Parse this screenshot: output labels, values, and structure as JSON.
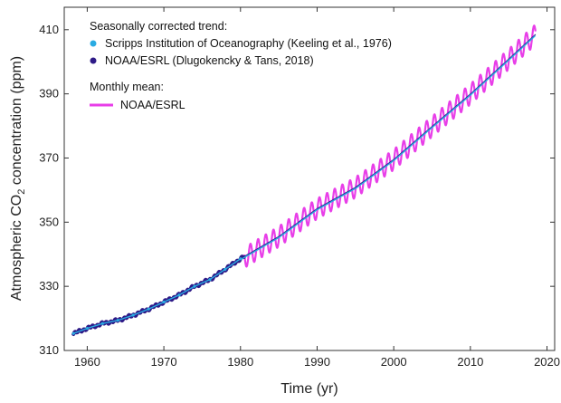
{
  "chart_data": {
    "type": "line",
    "xlabel": "Time (yr)",
    "ylabel": {
      "prefix": "Atmospheric CO",
      "subscript": "2",
      "suffix": " concentration (ppm)"
    },
    "xlim": [
      1957,
      2021
    ],
    "ylim": [
      310,
      417
    ],
    "xticks": [
      1960,
      1970,
      1980,
      1990,
      2000,
      2010,
      2020
    ],
    "yticks": [
      310,
      330,
      350,
      370,
      390,
      410
    ],
    "legend": {
      "placement": "top-left",
      "group1_title": "Seasonally corrected trend:",
      "group2_title": "Monthly mean:"
    },
    "series": [
      {
        "name": "Scripps Institution of Oceanography (Keeling et al., 1976)",
        "color": "#29abe2",
        "style": "points",
        "x": [
          1958.2,
          1960,
          1962,
          1964,
          1966,
          1968,
          1970,
          1972,
          1974,
          1976,
          1978,
          1980
        ],
        "y": [
          315.3,
          316.9,
          318.4,
          319.4,
          321.0,
          322.9,
          325.1,
          327.3,
          330.0,
          332.1,
          335.3,
          338.6
        ]
      },
      {
        "name": "NOAA/ESRL (Dlugokencky & Tans, 2018)",
        "color": "#2e1a87",
        "style": "line",
        "x": [
          1958.2,
          1960,
          1962,
          1964,
          1966,
          1968,
          1970,
          1972,
          1974,
          1976,
          1978,
          1980,
          1985,
          1990,
          1995,
          2000,
          2005,
          2010,
          2015,
          2018.5
        ],
        "y": [
          315.3,
          316.9,
          318.4,
          319.4,
          321.0,
          322.9,
          325.1,
          327.3,
          330.0,
          332.1,
          335.3,
          338.6,
          345.5,
          354.2,
          360.8,
          369.5,
          379.8,
          389.9,
          400.8,
          408.5
        ]
      },
      {
        "name": "NOAA/ESRL",
        "color": "#e83ee8",
        "style": "monthly-line",
        "seasonal_amplitude_ppm": 3.2,
        "x": [
          1980.5,
          1985,
          1990,
          1995,
          2000,
          2005,
          2010,
          2015,
          2018.5
        ],
        "y": [
          338.9,
          345.5,
          354.2,
          360.8,
          369.5,
          379.8,
          389.9,
          400.8,
          408.5
        ]
      }
    ]
  }
}
